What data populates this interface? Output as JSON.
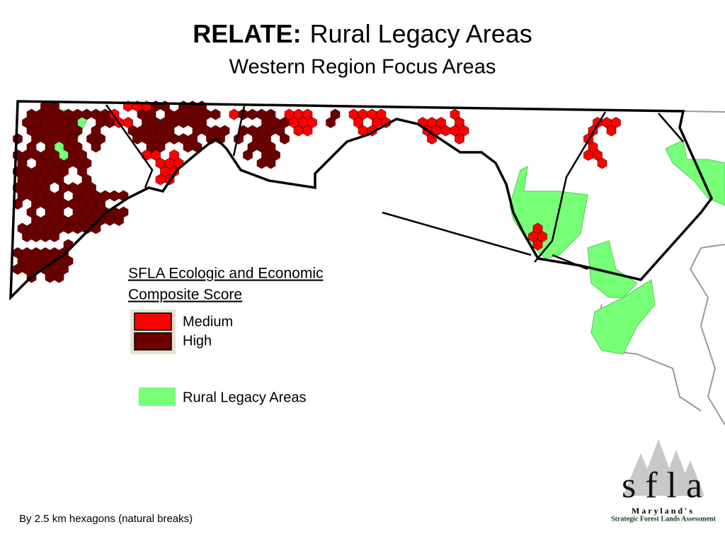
{
  "header": {
    "title_bold": "RELATE:",
    "title": "Rural Legacy Areas",
    "subtitle": "Western Region Focus Areas"
  },
  "legend": {
    "title_lines": [
      "SFLA Ecologic and Economic",
      "Composite Score"
    ],
    "items": [
      {
        "label": "Medium",
        "color": "#ff0000"
      },
      {
        "label": "High",
        "color": "#6b0000"
      }
    ],
    "area_label": "Rural Legacy Areas",
    "area_color": "#77ff77"
  },
  "footnote": "By 2.5 km hexagons (natural breaks)",
  "logo": {
    "letters": "s f l a",
    "maryland": "M a r y l a n d ' s",
    "name": "Strategic Forest Lands Assessment"
  }
}
